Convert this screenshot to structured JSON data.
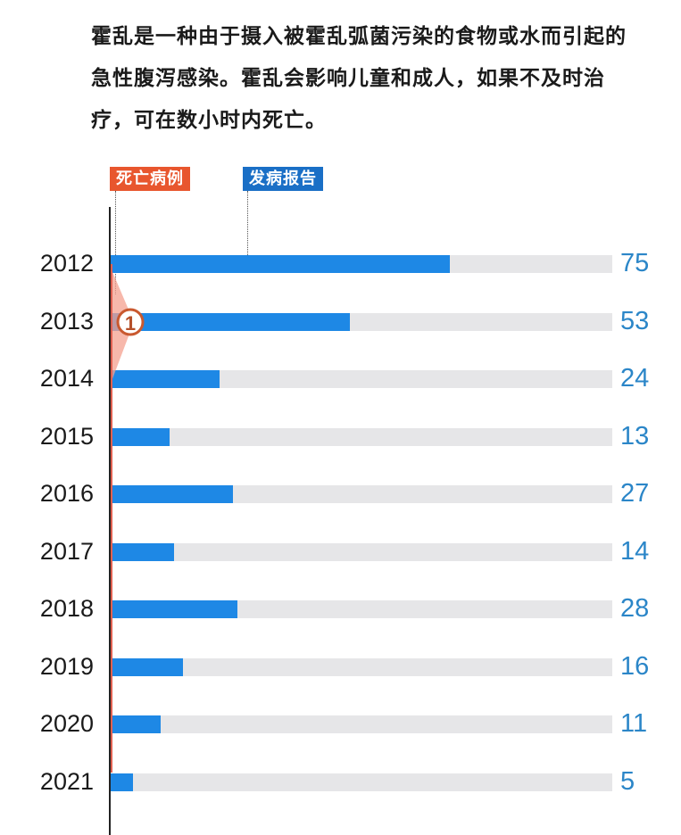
{
  "intro": {
    "text": "霍乱是一种由于摄入被霍乱弧菌污染的食物或水而引起的急性腹泻感染。霍乱会影响儿童和成人，如果不及时治疗，可在数小时内死亡。"
  },
  "colors": {
    "deaths": "#e8562e",
    "cases_tag": "#1a6fc6",
    "bar": "#1e88e5",
    "track": "#e6e6e8",
    "value_text": "#2b86c8"
  },
  "chart_data": {
    "type": "bar",
    "orientation": "horizontal",
    "legend": [
      "死亡病例",
      "发病报告"
    ],
    "categories": [
      "2012",
      "2013",
      "2014",
      "2015",
      "2016",
      "2017",
      "2018",
      "2019",
      "2020",
      "2021"
    ],
    "series": [
      {
        "name": "发病报告",
        "values": [
          75,
          53,
          24,
          13,
          27,
          14,
          28,
          16,
          11,
          5
        ]
      },
      {
        "name": "死亡病例",
        "values": [
          0,
          1,
          0,
          0,
          0,
          0,
          0,
          0,
          0,
          0
        ]
      }
    ],
    "value_labels": [
      "75",
      "53",
      "24",
      "13",
      "27",
      "14",
      "28",
      "16",
      "11",
      "5"
    ],
    "death_marker": {
      "year": "2013",
      "label": "1"
    },
    "xlim": [
      0,
      111
    ]
  }
}
